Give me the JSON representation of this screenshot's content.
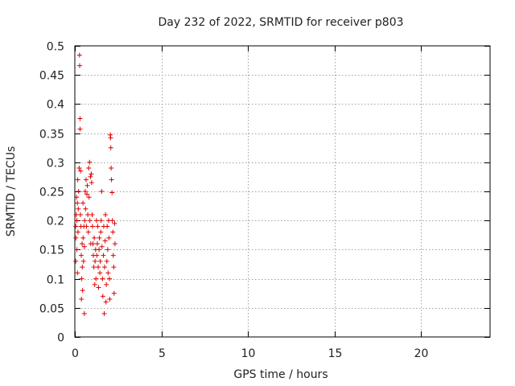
{
  "chart_data": {
    "type": "scatter",
    "title": "Day 232 of 2022, SRMTID for receiver p803",
    "xlabel": "GPS time / hours",
    "ylabel": "SRMTID / TECUs",
    "xlim": [
      0,
      24
    ],
    "ylim": [
      0,
      0.5
    ],
    "xticks": [
      0,
      5,
      10,
      15,
      20
    ],
    "xtick_labels": [
      "0",
      "5",
      "10",
      "15",
      "20"
    ],
    "yticks": [
      0,
      0.05,
      0.1,
      0.15,
      0.2,
      0.25,
      0.3,
      0.35,
      0.4,
      0.45,
      0.5
    ],
    "ytick_labels": [
      "0",
      "0.05",
      "0.1",
      "0.15",
      "0.2",
      "0.25",
      "0.3",
      "0.35",
      "0.4",
      "0.45",
      "0.5"
    ],
    "grid": true,
    "marker": "+",
    "color": "#e00000",
    "series": [
      {
        "name": "p803",
        "points": [
          [
            0.05,
            0.19
          ],
          [
            0.05,
            0.13
          ],
          [
            0.06,
            0.17
          ],
          [
            0.08,
            0.21
          ],
          [
            0.1,
            0.24
          ],
          [
            0.12,
            0.2
          ],
          [
            0.12,
            0.15
          ],
          [
            0.15,
            0.23
          ],
          [
            0.17,
            0.27
          ],
          [
            0.18,
            0.18
          ],
          [
            0.2,
            0.22
          ],
          [
            0.22,
            0.25
          ],
          [
            0.25,
            0.29
          ],
          [
            0.27,
            0.484
          ],
          [
            0.28,
            0.466
          ],
          [
            0.3,
            0.375
          ],
          [
            0.3,
            0.357
          ],
          [
            0.32,
            0.21
          ],
          [
            0.33,
            0.285
          ],
          [
            0.35,
            0.19
          ],
          [
            0.37,
            0.14
          ],
          [
            0.38,
            0.065
          ],
          [
            0.4,
            0.1
          ],
          [
            0.42,
            0.16
          ],
          [
            0.43,
            0.12
          ],
          [
            0.45,
            0.08
          ],
          [
            0.47,
            0.23
          ],
          [
            0.48,
            0.17
          ],
          [
            0.5,
            0.13
          ],
          [
            0.52,
            0.19
          ],
          [
            0.55,
            0.155
          ],
          [
            0.57,
            0.2
          ],
          [
            0.6,
            0.25
          ],
          [
            0.62,
            0.22
          ],
          [
            0.65,
            0.27
          ],
          [
            0.67,
            0.19
          ],
          [
            0.7,
            0.245
          ],
          [
            0.72,
            0.26
          ],
          [
            0.75,
            0.21
          ],
          [
            0.78,
            0.18
          ],
          [
            0.8,
            0.29
          ],
          [
            0.82,
            0.24
          ],
          [
            0.85,
            0.3
          ],
          [
            0.87,
            0.2
          ],
          [
            0.9,
            0.275
          ],
          [
            0.92,
            0.16
          ],
          [
            0.95,
            0.28
          ],
          [
            0.97,
            0.265
          ],
          [
            1.0,
            0.21
          ],
          [
            1.02,
            0.19
          ],
          [
            1.05,
            0.16
          ],
          [
            1.07,
            0.14
          ],
          [
            1.1,
            0.12
          ],
          [
            1.12,
            0.17
          ],
          [
            1.15,
            0.09
          ],
          [
            1.17,
            0.13
          ],
          [
            1.2,
            0.15
          ],
          [
            1.22,
            0.1
          ],
          [
            1.25,
            0.2
          ],
          [
            1.27,
            0.14
          ],
          [
            1.3,
            0.16
          ],
          [
            1.32,
            0.19
          ],
          [
            1.35,
            0.12
          ],
          [
            1.37,
            0.085
          ],
          [
            1.4,
            0.15
          ],
          [
            1.42,
            0.17
          ],
          [
            1.45,
            0.11
          ],
          [
            1.47,
            0.13
          ],
          [
            1.5,
            0.18
          ],
          [
            1.52,
            0.2
          ],
          [
            1.55,
            0.25
          ],
          [
            1.57,
            0.155
          ],
          [
            1.6,
            0.1
          ],
          [
            1.62,
            0.07
          ],
          [
            1.65,
            0.14
          ],
          [
            1.67,
            0.19
          ],
          [
            1.7,
            0.04
          ],
          [
            1.72,
            0.12
          ],
          [
            1.75,
            0.165
          ],
          [
            1.77,
            0.21
          ],
          [
            1.8,
            0.06
          ],
          [
            1.82,
            0.09
          ],
          [
            1.85,
            0.13
          ],
          [
            1.87,
            0.19
          ],
          [
            1.9,
            0.15
          ],
          [
            1.92,
            0.11
          ],
          [
            1.95,
            0.2
          ],
          [
            1.97,
            0.17
          ],
          [
            2.0,
            0.1
          ],
          [
            2.02,
            0.065
          ],
          [
            2.05,
            0.347
          ],
          [
            2.07,
            0.342
          ],
          [
            2.08,
            0.325
          ],
          [
            2.1,
            0.29
          ],
          [
            2.12,
            0.27
          ],
          [
            2.15,
            0.248
          ],
          [
            2.17,
            0.2
          ],
          [
            2.2,
            0.18
          ],
          [
            2.22,
            0.14
          ],
          [
            2.25,
            0.12
          ],
          [
            2.27,
            0.075
          ],
          [
            2.3,
            0.195
          ],
          [
            2.32,
            0.16
          ],
          [
            0.15,
            0.11
          ],
          [
            0.55,
            0.04
          ]
        ]
      }
    ]
  }
}
